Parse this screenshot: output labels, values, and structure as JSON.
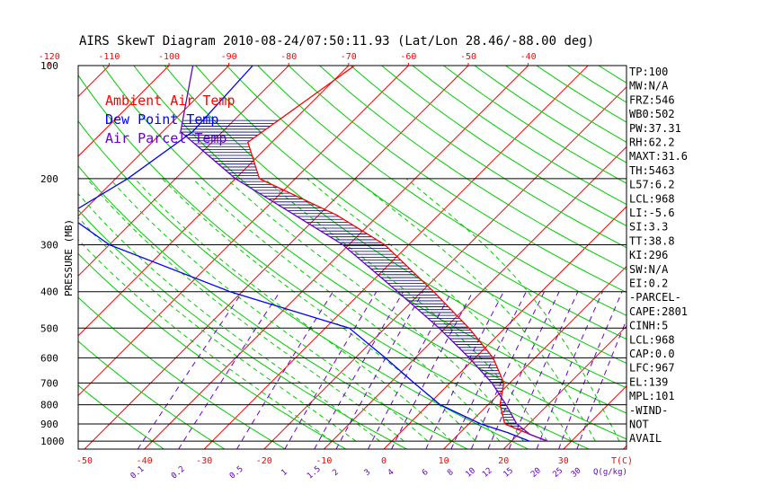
{
  "chart_data": {
    "type": "skewt",
    "title": "AIRS SkewT Diagram 2010-08-24/07:50:11.93 (Lat/Lon 28.46/-88.00 deg)",
    "ylabel": "PRESSURE (MB)",
    "x_top_ticks": [
      "-120",
      "-110",
      "-100",
      "-90",
      "-80",
      "-70",
      "-60",
      "-50",
      "-40"
    ],
    "x_bottom_ticks": [
      "-50",
      "-40",
      "-30",
      "-20",
      "-10",
      "0",
      "10",
      "20",
      "30"
    ],
    "x_bottom_unit": "T(C)",
    "pressure_levels": [
      100,
      200,
      300,
      400,
      500,
      600,
      700,
      800,
      900,
      1000
    ],
    "pressure_labels": [
      "100",
      "200",
      "300",
      "400",
      "500",
      "600",
      "700",
      "800",
      "900",
      "1000"
    ],
    "mixing_ratio_labels": [
      "0.1",
      "0.2",
      "0.5",
      "1",
      "1.5",
      "2",
      "3",
      "4",
      "6",
      "8",
      "10",
      "12",
      "15",
      "20",
      "25",
      "30"
    ],
    "mixing_ratio_unit": "Q(g/kg)",
    "legend": [
      {
        "name": "Ambient Air Temp",
        "color": "#ff0000"
      },
      {
        "name": "Dew Point Temp",
        "color": "#0000ff"
      },
      {
        "name": "Air Parcel Temp",
        "color": "#6600cc"
      }
    ],
    "colors": {
      "isotherm": "#ff0000",
      "dry_adiabat": "#00cc00",
      "moist_adiabat": "#00cc00",
      "mixing_ratio": "#6600cc",
      "isobar": "#000000",
      "tick_top": "#ff0000",
      "tick_bottom": "#ff0000",
      "cape_hatch": "#000066"
    },
    "series": [
      {
        "name": "Ambient Air Temp",
        "color": "#ff0000",
        "points": [
          [
            100,
            -69
          ],
          [
            160,
            -74
          ],
          [
            200,
            -66
          ],
          [
            250,
            -47
          ],
          [
            300,
            -34
          ],
          [
            400,
            -18
          ],
          [
            500,
            -6
          ],
          [
            600,
            3
          ],
          [
            700,
            9
          ],
          [
            800,
            12
          ],
          [
            900,
            16
          ],
          [
            960,
            22
          ],
          [
            1000,
            26
          ]
        ]
      },
      {
        "name": "Dew Point Temp",
        "color": "#0000ff",
        "points": [
          [
            100,
            -86
          ],
          [
            150,
            -85
          ],
          [
            200,
            -88
          ],
          [
            250,
            -92
          ],
          [
            300,
            -80
          ],
          [
            400,
            -52
          ],
          [
            500,
            -26
          ],
          [
            600,
            -15
          ],
          [
            700,
            -6
          ],
          [
            800,
            2
          ],
          [
            900,
            12
          ],
          [
            950,
            18
          ],
          [
            1000,
            23
          ]
        ]
      },
      {
        "name": "Air Parcel Temp",
        "color": "#6600cc",
        "points": [
          [
            100,
            -96
          ],
          [
            150,
            -87
          ],
          [
            200,
            -70
          ],
          [
            250,
            -54
          ],
          [
            300,
            -41
          ],
          [
            400,
            -24
          ],
          [
            500,
            -11
          ],
          [
            600,
            -1
          ],
          [
            700,
            7
          ],
          [
            800,
            13
          ],
          [
            900,
            18
          ],
          [
            960,
            22
          ],
          [
            1000,
            26
          ]
        ]
      }
    ]
  },
  "stats": [
    "TP:100",
    "MW:N/A",
    "FRZ:546",
    "WB0:502",
    "PW:37.31",
    "RH:62.2",
    "MAXT:31.6",
    "TH:5463",
    "L57:6.2",
    "LCL:968",
    "LI:-5.6",
    "SI:3.3",
    "TT:38.8",
    "KI:296",
    "SW:N/A",
    "EI:0.2",
    "-PARCEL-",
    "CAPE:2801",
    "CINH:5",
    "LCL:968",
    "CAP:0.0",
    "LFC:967",
    "EL:139",
    "MPL:101",
    "-WIND-",
    "NOT",
    "AVAIL"
  ]
}
